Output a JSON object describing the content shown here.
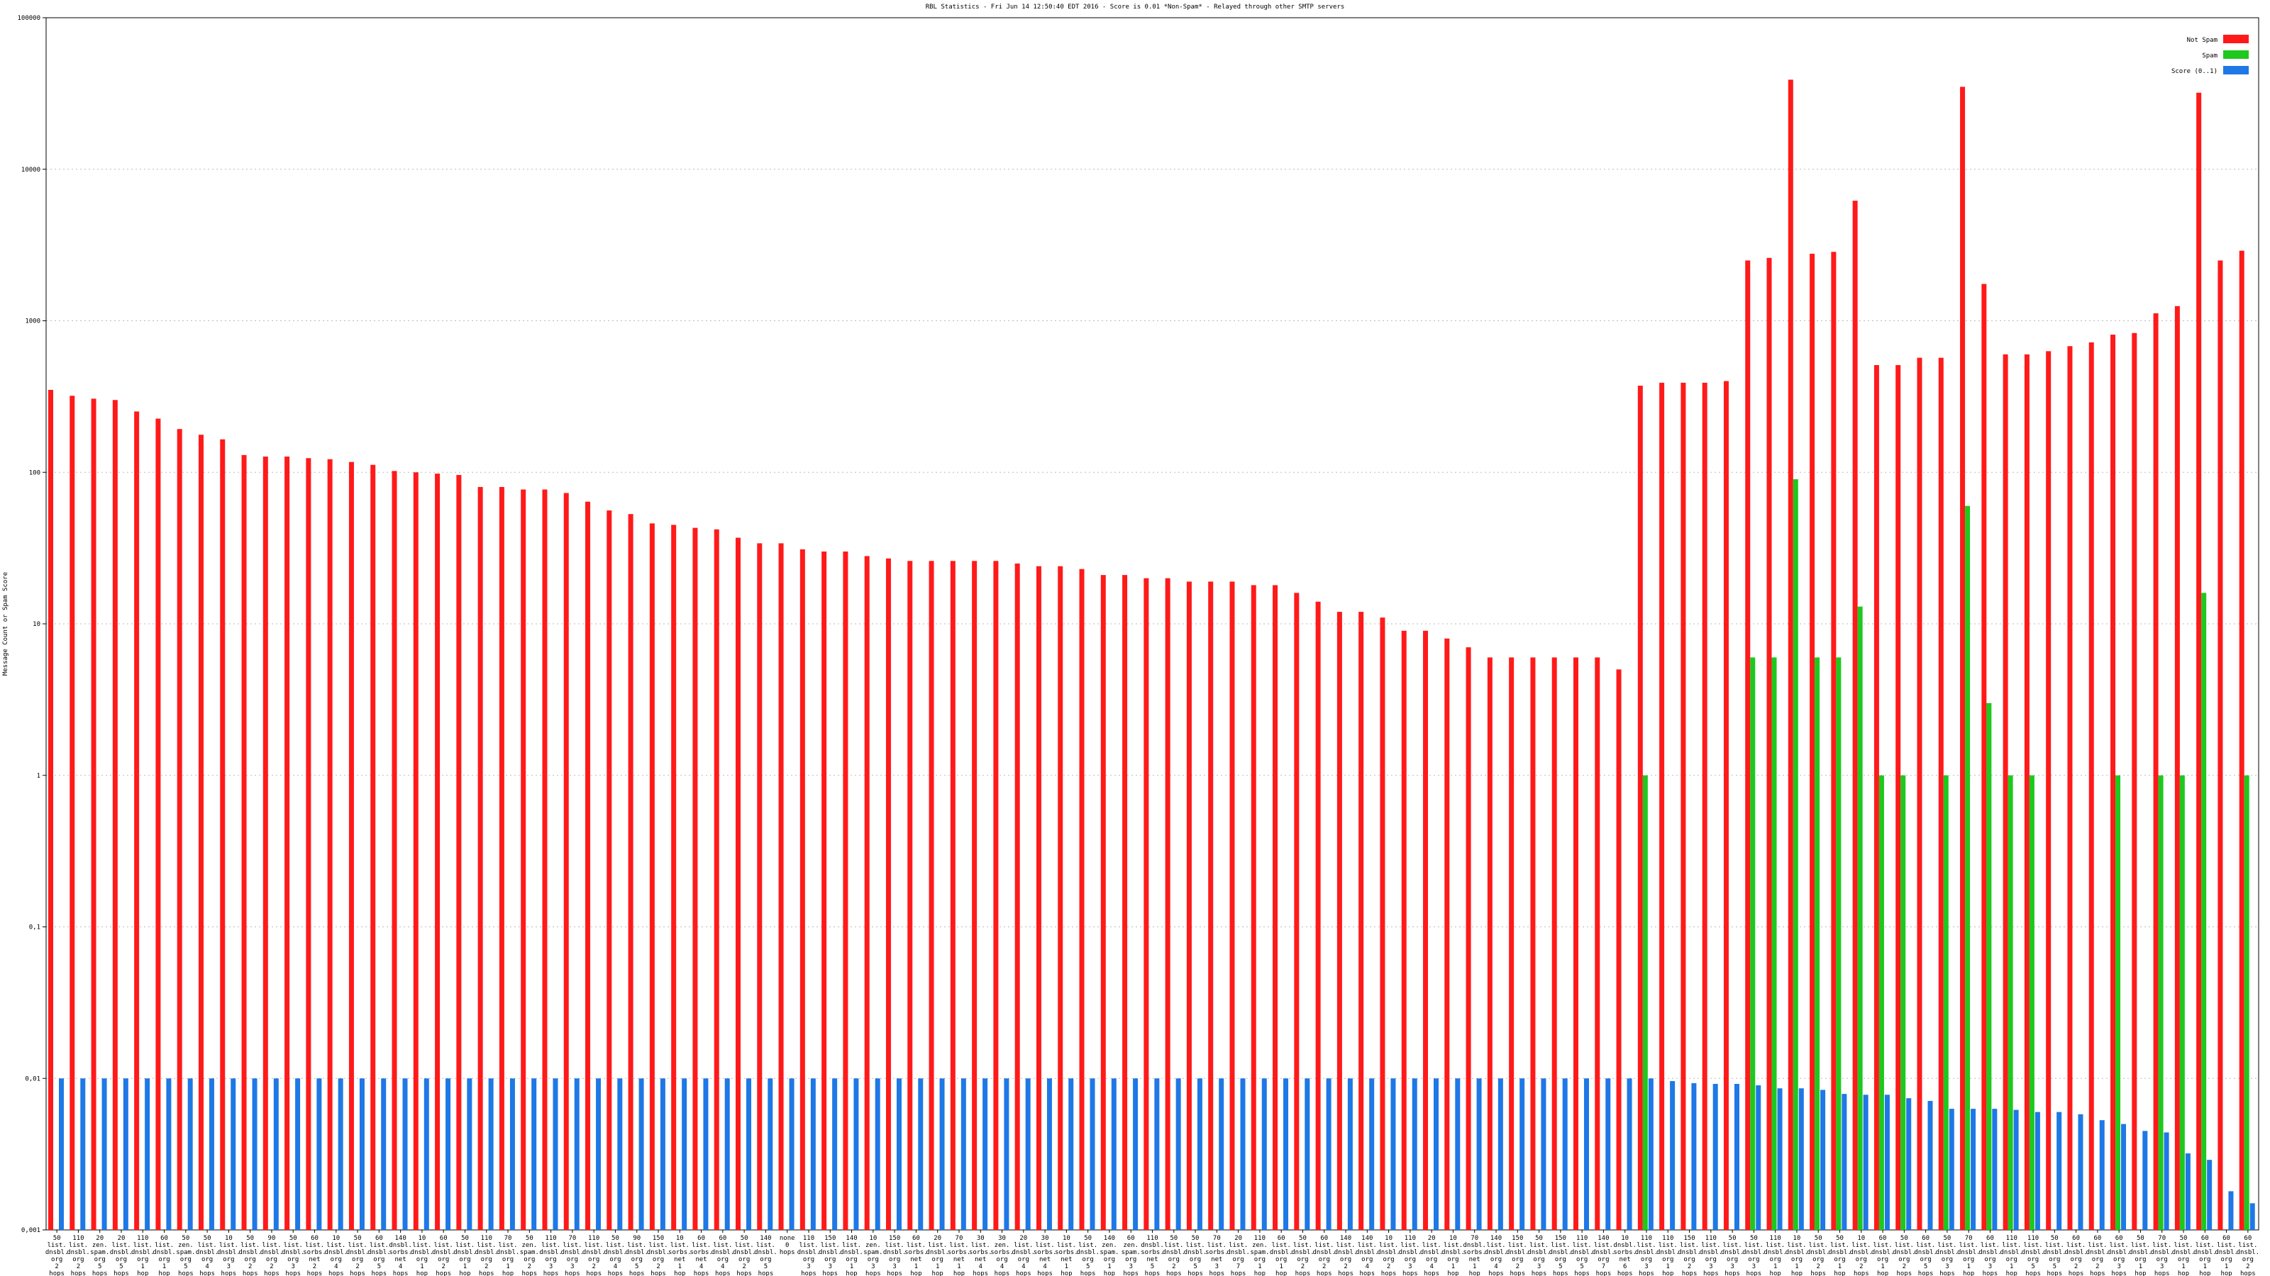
{
  "chart_data": {
    "type": "bar",
    "title": "RBL Statistics - Fri Jun 14 12:50:40 EDT 2016 - Score is 0.01 *Non-Spam* - Relayed through other SMTP servers",
    "y_label": "Message Count or Spam Score",
    "log_scale": true,
    "grid": true,
    "legend_position": "top-right",
    "ylim": [
      0.001,
      100000
    ],
    "yticks": [
      {
        "value": 0.001,
        "label": "0,001"
      },
      {
        "value": 0.01,
        "label": "0,01"
      },
      {
        "value": 0.1,
        "label": "0,1"
      },
      1,
      10,
      100,
      1000,
      10000,
      100000
    ],
    "categories": [
      "50 list. dnsbl. org 2 hops",
      "110 list. dnsbl. org 2 hops",
      "20 zen. spam. org 5 hops",
      "20 list. dnsbl. org 5 hops",
      "110 list. dnsbl. org 1 hop",
      "60 list. dnsbl. org 1 hop",
      "50 zen. spam. org 5 hops",
      "50 list. dnsbl. org 4 hops",
      "10 list. dnsbl. org 3 hops",
      "50 list. dnsbl. org 2 hops",
      "90 list. dnsbl. org 2 hops",
      "50 list. dnsbl. org 3 hops",
      "60 list. sorbs. net 2 hops",
      "10 list. dnsbl. org 4 hops",
      "50 list. dnsbl. org 2 hops",
      "60 list. dnsbl. org 5 hops",
      "140 dnsbl. sorbs. net 4 hops",
      "10 list. dnsbl. org 1 hop",
      "60 list. dnsbl. org 2 hops",
      "50 list. dnsbl. org 1 hop",
      "110 list. dnsbl. org 2 hops",
      "70 list. dnsbl. org 1 hop",
      "50 zen. spam. org 2 hops",
      "110 list. dnsbl. org 3 hops",
      "70 list. dnsbl. org 3 hops",
      "110 list. dnsbl. org 2 hops",
      "50 list. dnsbl. org 4 hops",
      "90 list. dnsbl. org 5 hops",
      "150 list. dnsbl. org 2 hops",
      "10 list. sorbs. net 1 hop",
      "60 list. sorbs. net 4 hops",
      "60 list. dnsbl. org 4 hops",
      "50 list. dnsbl. org 2 hops",
      "140 list. dnsbl. org 5 hops",
      "none 0 hops",
      "110 list. dnsbl. org 3 hops",
      "150 list. dnsbl. org 3 hops",
      "140 list. dnsbl. org 1 hop",
      "10 zen. spam. org 3 hops",
      "150 list. dnsbl. org 3 hops",
      "60 list. sorbs. net 1 hop",
      "20 list. dnsbl. org 1 hop",
      "70 list. sorbs. net 1 hop",
      "30 list. sorbs. net 4 hops",
      "30 zen. sorbs. org 4 hops",
      "20 list. dnsbl. org 4 hops",
      "30 list. sorbs. net 4 hops",
      "10 list. sorbs. net 1 hop",
      "50 list. dnsbl. org 5 hops",
      "140 zen. spam. org 1 hop",
      "60 zen. spam. org 3 hops",
      "110 dnsbl. sorbs. net 5 hops",
      "50 list. dnsbl. org 2 hops",
      "50 list. dnsbl. org 5 hops",
      "70 list. sorbs. net 3 hops",
      "20 list. dnsbl. org 7 hops",
      "110 zen. spam. org 1 hop",
      "60 list. dnsbl. org 1 hop",
      "50 list. dnsbl. org 2 hops",
      "60 list. dnsbl. org 2 hops",
      "140 list. dnsbl. org 2 hops",
      "140 list. dnsbl. org 4 hops",
      "10 list. dnsbl. org 2 hops",
      "110 list. dnsbl. org 3 hops",
      "20 list. dnsbl. org 4 hops",
      "10 list. dnsbl. org 1 hop",
      "70 dnsbl. sorbs. net 1 hop",
      "140 list. dnsbl. org 4 hops",
      "150 list. dnsbl. org 2 hops",
      "50 list. dnsbl. org 3 hops",
      "150 list. dnsbl. org 5 hops",
      "110 list. dnsbl. org 5 hops",
      "140 list. dnsbl. org 7 hops",
      "10 dnsbl. sorbs. net 6 hops",
      "110 list. dnsbl. org 3 hops",
      "110 list. dnsbl. org 1 hop",
      "150 list. dnsbl. org 2 hops",
      "110 list. dnsbl. org 3 hops",
      "50 list. dnsbl. org 3 hops",
      "50 list. dnsbl. org 3 hops",
      "110 list. dnsbl. org 1 hop",
      "10 list. dnsbl. org 1 hop",
      "50 list. dnsbl. org 2 hops",
      "50 list. dnsbl. org 1 hop",
      "10 list. dnsbl. org 2 hops",
      "60 list. dnsbl. org 1 hop",
      "50 list. dnsbl. org 2 hops",
      "60 list. dnsbl. org 5 hops",
      "50 list. dnsbl. org 3 hops",
      "70 list. dnsbl. org 1 hop",
      "60 list. dnsbl. org 3 hops",
      "110 list. dnsbl. org 1 hop",
      "110 list. dnsbl. org 5 hops",
      "50 list. dnsbl. org 5 hops",
      "60 list. dnsbl. org 2 hops",
      "60 list. dnsbl. org 2 hops",
      "60 list. dnsbl. org 3 hops",
      "50 list. dnsbl. org 1 hop",
      "70 list. dnsbl. org 3 hops",
      "50 list. dnsbl. org 1 hop",
      "60 list. dnsbl. org 1 hop",
      "60 list. dnsbl. org 1 hop",
      "60 list. dnsbl. org 2 hops"
    ],
    "series": [
      {
        "name": "Not Spam",
        "color": "#ff1a1a",
        "values": [
          350,
          320,
          306,
          300,
          252,
          226,
          193,
          177,
          165,
          130,
          127,
          127,
          124,
          122,
          117,
          112,
          102,
          100,
          98,
          96,
          80,
          80,
          77,
          77,
          73,
          64,
          56,
          53,
          46,
          45,
          43,
          42,
          37,
          34,
          34,
          31,
          30,
          30,
          28,
          27,
          26,
          26,
          26,
          26,
          26,
          25,
          24,
          24,
          23,
          21,
          21,
          20,
          20,
          19,
          19,
          19,
          18,
          18,
          16,
          14,
          12,
          12,
          11,
          9,
          9,
          8,
          7,
          6,
          6,
          6,
          6,
          6,
          6,
          5,
          373,
          390,
          390,
          390,
          400,
          2500,
          2600,
          39000,
          2770,
          2850,
          6200,
          510,
          510,
          570,
          570,
          35000,
          1750,
          600,
          600,
          630,
          680,
          720,
          810,
          830,
          1120,
          1250,
          32000,
          2500,
          2900
        ]
      },
      {
        "name": "Spam",
        "color": "#1ec81e",
        "values": [
          null,
          null,
          null,
          null,
          null,
          null,
          null,
          null,
          null,
          null,
          null,
          null,
          null,
          null,
          null,
          null,
          null,
          null,
          null,
          null,
          null,
          null,
          null,
          null,
          null,
          null,
          null,
          null,
          null,
          null,
          null,
          null,
          null,
          null,
          null,
          null,
          null,
          null,
          null,
          null,
          null,
          null,
          null,
          null,
          null,
          null,
          null,
          null,
          null,
          null,
          null,
          null,
          null,
          null,
          null,
          null,
          null,
          null,
          null,
          null,
          null,
          null,
          null,
          null,
          null,
          null,
          null,
          null,
          null,
          null,
          null,
          null,
          null,
          null,
          1,
          null,
          null,
          null,
          null,
          6,
          6,
          90,
          6,
          6,
          13,
          1,
          1,
          null,
          1,
          60,
          3,
          1,
          1,
          null,
          null,
          null,
          1,
          null,
          1,
          1,
          16,
          null,
          1
        ]
      },
      {
        "name": "Score (0..1)",
        "color": "#1e78e6",
        "values": [
          0.01,
          0.01,
          0.01,
          0.01,
          0.01,
          0.01,
          0.01,
          0.01,
          0.01,
          0.01,
          0.01,
          0.01,
          0.01,
          0.01,
          0.01,
          0.01,
          0.01,
          0.01,
          0.01,
          0.01,
          0.01,
          0.01,
          0.01,
          0.01,
          0.01,
          0.01,
          0.01,
          0.01,
          0.01,
          0.01,
          0.01,
          0.01,
          0.01,
          0.01,
          0.01,
          0.01,
          0.01,
          0.01,
          0.01,
          0.01,
          0.01,
          0.01,
          0.01,
          0.01,
          0.01,
          0.01,
          0.01,
          0.01,
          0.01,
          0.01,
          0.01,
          0.01,
          0.01,
          0.01,
          0.01,
          0.01,
          0.01,
          0.01,
          0.01,
          0.01,
          0.01,
          0.01,
          0.01,
          0.01,
          0.01,
          0.01,
          0.01,
          0.01,
          0.01,
          0.01,
          0.01,
          0.01,
          0.01,
          0.01,
          0.01,
          0.0096,
          0.0093,
          0.0092,
          0.0092,
          0.009,
          0.0086,
          0.0086,
          0.0084,
          0.0079,
          0.0078,
          0.0078,
          0.0074,
          0.0071,
          0.0063,
          0.0063,
          0.0063,
          0.0062,
          0.006,
          0.006,
          0.0058,
          0.0053,
          0.005,
          0.0045,
          0.0044,
          0.0032,
          0.0029,
          0.0018,
          0.0015
        ]
      }
    ]
  }
}
